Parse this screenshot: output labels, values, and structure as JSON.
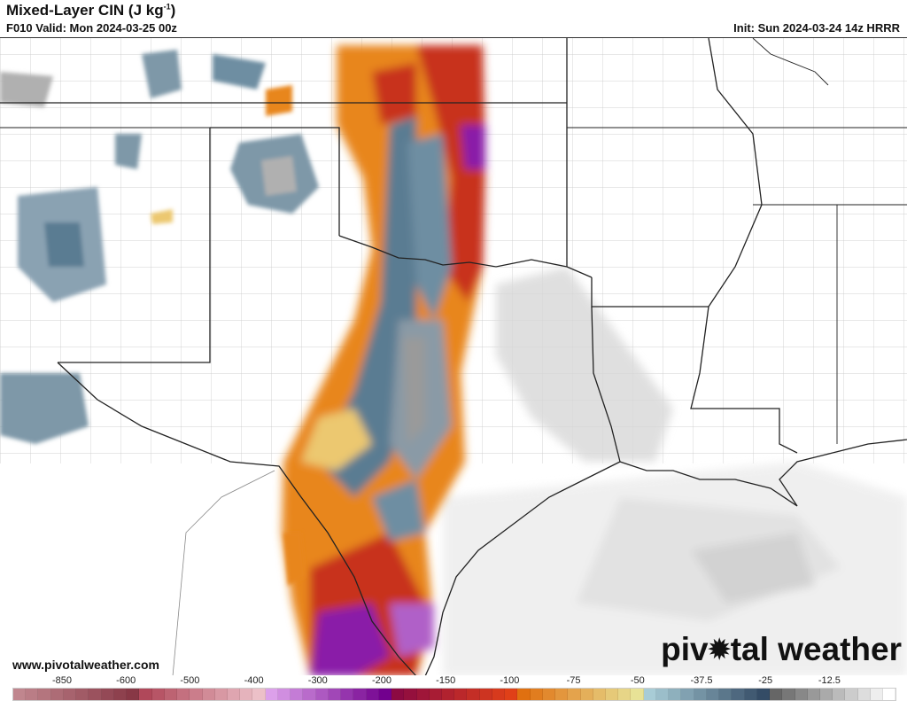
{
  "header": {
    "title": "Mixed-Layer CIN (J kg",
    "title_sup": "-1",
    "title_end": ")",
    "valid": "F010 Valid: Mon 2024-03-25 00z",
    "init": "Init: Sun 2024-03-24 14z HRRR"
  },
  "footer": {
    "url": "www.pivotalweather.com",
    "logo_part1": "piv",
    "logo_part2": "tal weather",
    "logo_icon": "gear-icon"
  },
  "colorbar": {
    "tick_labels": [
      "-850",
      "-600",
      "-500",
      "-400",
      "-300",
      "-200",
      "-150",
      "-100",
      "-75",
      "-50",
      "-37.5",
      "-25",
      "-12.5"
    ],
    "groups": [
      {
        "from": "#c0868e",
        "to": "#883846"
      },
      {
        "from": "#b0485a",
        "to": "#ecc0c8"
      },
      {
        "from": "#dca0ea",
        "to": "#72008e"
      },
      {
        "from": "#8c0a42",
        "to": "#e04018"
      },
      {
        "from": "#e07010",
        "to": "#e8e296"
      },
      {
        "from": "#a8ccd6",
        "to": "#344c66"
      },
      {
        "from": "#666666",
        "to": "#ffffff"
      }
    ],
    "cells_per_group": 10
  },
  "colors": {
    "purple": "#8a1aa8",
    "red": "#c8301c",
    "orange": "#e8861e",
    "yellow": "#ecc870",
    "blue": "#5a7c92",
    "gray": "#9a9a9a",
    "border": "#222222",
    "county": "#bbbbbb"
  }
}
